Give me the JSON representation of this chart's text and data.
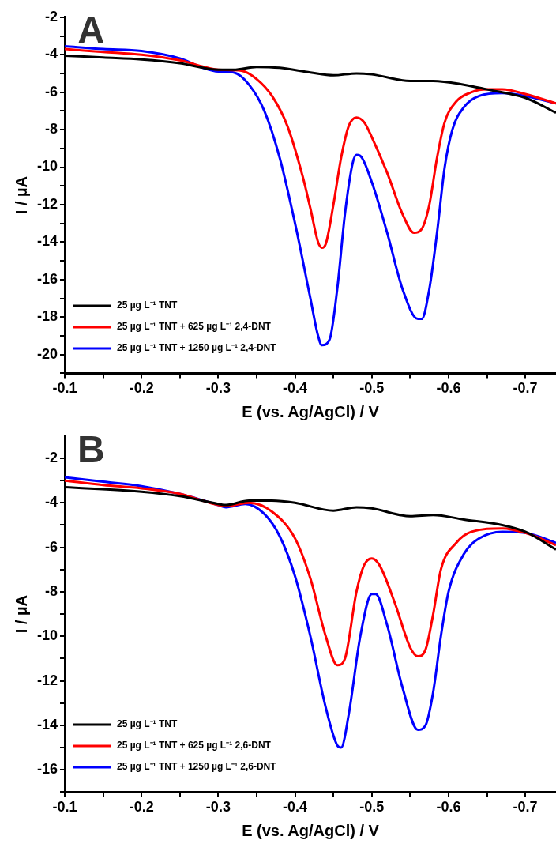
{
  "chart_data": [
    {
      "type": "line",
      "annotations": [
        "A"
      ],
      "xlabel": "E (vs. Ag/AgCl) / V",
      "ylabel": "I / µA",
      "xlim": [
        -0.1,
        -0.74
      ],
      "ylim": [
        -21,
        -2
      ],
      "xticks": [
        -0.1,
        {
          "value": -0.15,
          "label": null
        },
        -0.2,
        {
          "value": -0.25,
          "label": null
        },
        -0.3,
        {
          "value": -0.35,
          "label": null
        },
        -0.4,
        {
          "value": -0.45,
          "label": null
        },
        -0.5,
        {
          "value": -0.55,
          "label": null
        },
        -0.6,
        {
          "value": -0.65,
          "label": null
        },
        -0.7
      ],
      "yticks": [
        -2,
        {
          "value": -3,
          "label": null
        },
        -4,
        {
          "value": -5,
          "label": null
        },
        -6,
        {
          "value": -7,
          "label": null
        },
        -8,
        {
          "value": -9,
          "label": null
        },
        -10,
        {
          "value": -11,
          "label": null
        },
        -12,
        {
          "value": -13,
          "label": null
        },
        -14,
        {
          "value": -15,
          "label": null
        },
        -16,
        {
          "value": -17,
          "label": null
        },
        -18,
        {
          "value": -19,
          "label": null
        },
        -20,
        {
          "value": -21,
          "label": null
        }
      ],
      "grid": false,
      "legend": "bottom left",
      "series": [
        {
          "name": "25 µg L⁻¹ TNT",
          "color": "#000000",
          "x": [
            -0.1,
            -0.15,
            -0.2,
            -0.25,
            -0.3,
            -0.32,
            -0.35,
            -0.38,
            -0.42,
            -0.45,
            -0.48,
            -0.5,
            -0.55,
            -0.58,
            -0.62,
            -0.65,
            -0.7,
            -0.74
          ],
          "values": [
            -4.05,
            -4.15,
            -4.25,
            -4.45,
            -4.8,
            -4.8,
            -4.65,
            -4.7,
            -4.95,
            -5.1,
            -5.0,
            -5.05,
            -5.4,
            -5.4,
            -5.6,
            -5.85,
            -6.3,
            -7.1
          ]
        },
        {
          "name": "25 µg L⁻¹ TNT + 625 µg L⁻¹ 2,4-DNT",
          "color": "#ff0000",
          "x": [
            -0.1,
            -0.15,
            -0.2,
            -0.25,
            -0.3,
            -0.33,
            -0.35,
            -0.37,
            -0.39,
            -0.41,
            -0.42,
            -0.43,
            -0.435,
            -0.44,
            -0.45,
            -0.46,
            -0.47,
            -0.48,
            -0.49,
            -0.5,
            -0.52,
            -0.54,
            -0.555,
            -0.565,
            -0.575,
            -0.585,
            -0.595,
            -0.61,
            -0.63,
            -0.65,
            -0.67,
            -0.7,
            -0.74
          ],
          "values": [
            -3.7,
            -3.85,
            -4.0,
            -4.3,
            -4.8,
            -4.85,
            -5.3,
            -6.2,
            -7.8,
            -10.5,
            -12.2,
            -14.0,
            -14.3,
            -14.1,
            -12.0,
            -9.5,
            -7.8,
            -7.35,
            -7.6,
            -8.4,
            -10.3,
            -12.5,
            -13.5,
            -13.3,
            -12.0,
            -9.5,
            -7.6,
            -6.5,
            -6.0,
            -5.85,
            -5.85,
            -6.1,
            -6.6
          ]
        },
        {
          "name": "25 µg L⁻¹ TNT + 1250 µg L⁻¹ 2,4-DNT",
          "color": "#0000ff",
          "x": [
            -0.1,
            -0.15,
            -0.2,
            -0.25,
            -0.28,
            -0.3,
            -0.32,
            -0.34,
            -0.36,
            -0.38,
            -0.4,
            -0.42,
            -0.43,
            -0.435,
            -0.445,
            -0.455,
            -0.465,
            -0.475,
            -0.48,
            -0.485,
            -0.5,
            -0.52,
            -0.54,
            -0.56,
            -0.565,
            -0.575,
            -0.585,
            -0.595,
            -0.605,
            -0.62,
            -0.64,
            -0.67,
            -0.7,
            -0.74
          ],
          "values": [
            -3.55,
            -3.7,
            -3.8,
            -4.2,
            -4.7,
            -4.9,
            -4.95,
            -5.6,
            -7.0,
            -9.5,
            -13.0,
            -17.0,
            -19.0,
            -19.5,
            -19.2,
            -16.5,
            -12.5,
            -9.8,
            -9.35,
            -9.4,
            -10.8,
            -13.5,
            -16.5,
            -18.1,
            -18.1,
            -16.5,
            -13.5,
            -10.0,
            -8.0,
            -6.8,
            -6.2,
            -6.05,
            -6.2,
            -6.6
          ]
        }
      ]
    },
    {
      "type": "line",
      "annotations": [
        "B"
      ],
      "xlabel": "E (vs. Ag/AgCl) / V",
      "ylabel": "I / µA",
      "xlim": [
        -0.1,
        -0.74
      ],
      "ylim": [
        -17,
        -1
      ],
      "xticks": [
        -0.1,
        {
          "value": -0.15,
          "label": null
        },
        -0.2,
        {
          "value": -0.25,
          "label": null
        },
        -0.3,
        {
          "value": -0.35,
          "label": null
        },
        -0.4,
        {
          "value": -0.45,
          "label": null
        },
        -0.5,
        {
          "value": -0.55,
          "label": null
        },
        -0.6,
        {
          "value": -0.65,
          "label": null
        },
        -0.7
      ],
      "yticks": [
        -2,
        {
          "value": -3,
          "label": null
        },
        -4,
        {
          "value": -5,
          "label": null
        },
        -6,
        {
          "value": -7,
          "label": null
        },
        -8,
        {
          "value": -9,
          "label": null
        },
        -10,
        {
          "value": -11,
          "label": null
        },
        -12,
        {
          "value": -13,
          "label": null
        },
        -14,
        {
          "value": -15,
          "label": null
        },
        -16,
        {
          "value": -17,
          "label": null
        }
      ],
      "grid": false,
      "legend": "bottom left",
      "series": [
        {
          "name": "25 µg L⁻¹ TNT",
          "color": "#000000",
          "x": [
            -0.1,
            -0.2,
            -0.25,
            -0.3,
            -0.31,
            -0.34,
            -0.37,
            -0.4,
            -0.45,
            -0.48,
            -0.5,
            -0.55,
            -0.58,
            -0.62,
            -0.67,
            -0.7,
            -0.74
          ],
          "values": [
            -3.3,
            -3.5,
            -3.7,
            -4.05,
            -4.1,
            -3.9,
            -3.9,
            -4.0,
            -4.35,
            -4.2,
            -4.25,
            -4.6,
            -4.55,
            -4.75,
            -5.0,
            -5.3,
            -6.1
          ]
        },
        {
          "name": "25 µg L⁻¹ TNT + 625 µg L⁻¹ 2,6-DNT",
          "color": "#ff0000",
          "x": [
            -0.1,
            -0.15,
            -0.2,
            -0.25,
            -0.3,
            -0.31,
            -0.34,
            -0.37,
            -0.4,
            -0.42,
            -0.44,
            -0.455,
            -0.465,
            -0.48,
            -0.49,
            -0.5,
            -0.51,
            -0.53,
            -0.55,
            -0.56,
            -0.57,
            -0.58,
            -0.59,
            -0.61,
            -0.63,
            -0.67,
            -0.7,
            -0.74
          ],
          "values": [
            -3.0,
            -3.2,
            -3.35,
            -3.6,
            -4.1,
            -4.15,
            -4.0,
            -4.4,
            -5.6,
            -7.4,
            -10.0,
            -11.3,
            -11.0,
            -8.0,
            -6.8,
            -6.5,
            -6.8,
            -8.5,
            -10.5,
            -10.9,
            -10.6,
            -9.0,
            -7.0,
            -5.8,
            -5.3,
            -5.15,
            -5.35,
            -5.9
          ]
        },
        {
          "name": "25 µg L⁻¹ TNT + 1250 µg L⁻¹ 2,6-DNT",
          "color": "#0000ff",
          "x": [
            -0.1,
            -0.15,
            -0.2,
            -0.25,
            -0.3,
            -0.31,
            -0.335,
            -0.36,
            -0.38,
            -0.4,
            -0.42,
            -0.44,
            -0.455,
            -0.46,
            -0.47,
            -0.485,
            -0.5,
            -0.505,
            -0.52,
            -0.54,
            -0.56,
            -0.57,
            -0.58,
            -0.59,
            -0.6,
            -0.62,
            -0.64,
            -0.67,
            -0.7,
            -0.74
          ],
          "values": [
            -2.85,
            -3.05,
            -3.25,
            -3.6,
            -4.1,
            -4.2,
            -4.05,
            -4.5,
            -5.5,
            -7.3,
            -10.0,
            -13.2,
            -14.9,
            -15.0,
            -13.5,
            -10.0,
            -8.1,
            -8.1,
            -9.5,
            -12.3,
            -14.2,
            -14.0,
            -12.5,
            -10.0,
            -8.0,
            -6.3,
            -5.6,
            -5.3,
            -5.35,
            -5.8
          ]
        }
      ]
    }
  ]
}
